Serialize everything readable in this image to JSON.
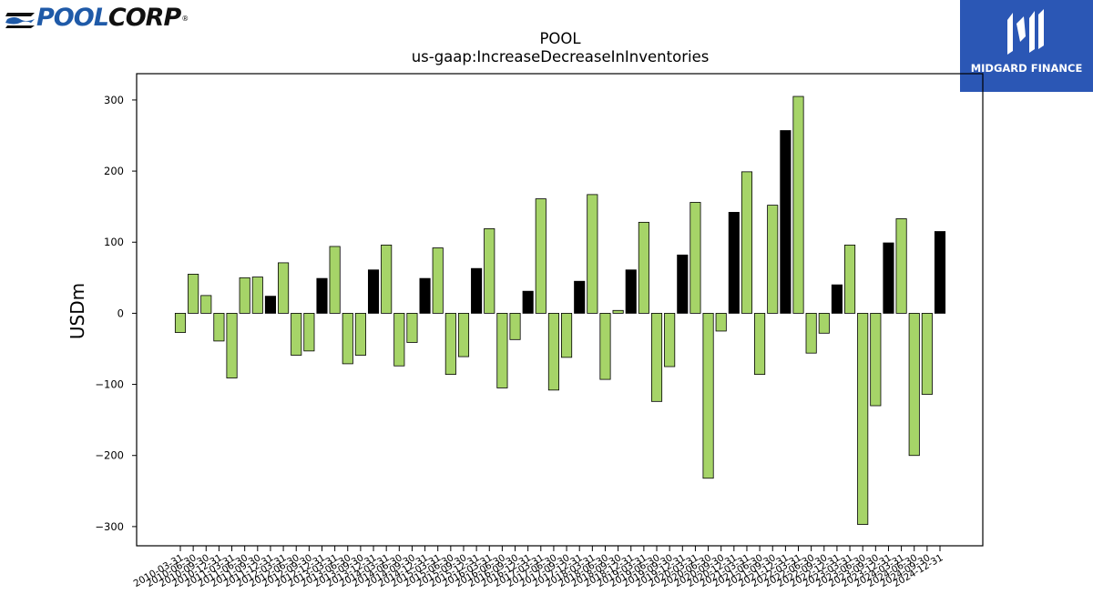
{
  "logos": {
    "left": {
      "part1": "POOL",
      "part2": "CORP",
      "mark": "®"
    },
    "right": {
      "text": "MIDGARD FINANCE",
      "icon": "midgard-monogram-icon"
    }
  },
  "colors": {
    "positive_fill": "#000000",
    "negative_fill": "#a6d468",
    "edge": "#000000"
  },
  "chart_data": {
    "type": "bar",
    "title": "POOL",
    "subtitle": "us-gaap:IncreaseDecreaseInInventories",
    "xlabel": "",
    "ylabel": "USDm",
    "ylim": [
      -327,
      337
    ],
    "yticks": [
      300,
      200,
      100,
      0,
      -100,
      -200,
      -300
    ],
    "ytick_labels": [
      "300",
      "200",
      "100",
      "0",
      "−100",
      "−200",
      "−300"
    ],
    "categories": [
      "2010-03-31",
      "2010-06-30",
      "2010-09-30",
      "2010-12-31",
      "2011-03-31",
      "2011-06-30",
      "2011-09-30",
      "2011-12-31",
      "2012-03-31",
      "2012-06-30",
      "2012-09-30",
      "2012-12-31",
      "2013-03-31",
      "2013-06-30",
      "2013-09-30",
      "2013-12-31",
      "2014-03-31",
      "2014-06-30",
      "2014-09-30",
      "2014-12-31",
      "2015-03-31",
      "2015-06-30",
      "2015-09-30",
      "2015-12-31",
      "2016-03-31",
      "2016-06-30",
      "2016-09-30",
      "2016-12-31",
      "2017-03-31",
      "2017-06-30",
      "2017-09-30",
      "2017-12-31",
      "2018-03-31",
      "2018-06-30",
      "2018-09-30",
      "2018-12-31",
      "2019-03-31",
      "2019-06-30",
      "2019-09-30",
      "2019-12-31",
      "2020-03-31",
      "2020-06-30",
      "2020-09-30",
      "2020-12-31",
      "2021-03-31",
      "2021-06-30",
      "2021-09-30",
      "2021-12-31",
      "2022-03-31",
      "2022-06-30",
      "2022-09-30",
      "2022-12-31",
      "2023-03-31",
      "2023-06-30",
      "2023-09-30",
      "2023-12-31",
      "2024-03-31",
      "2024-06-30",
      "2024-09-30",
      "2024-12-31"
    ],
    "values": [
      -27,
      55,
      25,
      -39,
      -91,
      50,
      51,
      24,
      71,
      -59,
      -53,
      49,
      94,
      -71,
      -59,
      61,
      96,
      -74,
      -41,
      49,
      92,
      -86,
      -61,
      63,
      119,
      -105,
      -37,
      31,
      161,
      -108,
      -62,
      45,
      167,
      -93,
      4,
      61,
      128,
      -124,
      -75,
      82,
      156,
      -232,
      -25,
      142,
      199,
      -86,
      152,
      257,
      305,
      -56,
      -28,
      40,
      96,
      -297,
      -130,
      99,
      133,
      -200,
      -114,
      115
    ],
    "grid": false,
    "legend": "none"
  }
}
